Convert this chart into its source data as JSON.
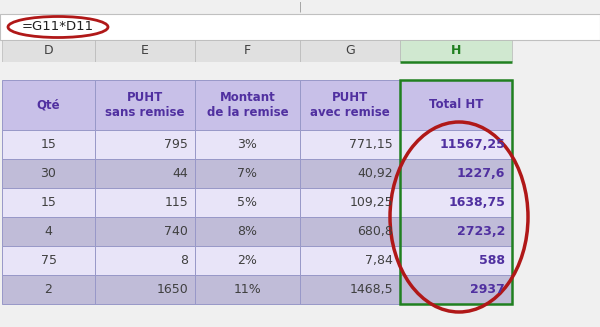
{
  "formula_bar_text": "=G11*D11",
  "col_letters": [
    "D",
    "E",
    "F",
    "G",
    "H"
  ],
  "header_row": [
    "Qté",
    "PUHT\nsans remise",
    "Montant\nde la remise",
    "PUHT\navec remise",
    "Total HT"
  ],
  "rows": [
    [
      "15",
      "795",
      "3%",
      "771,15",
      "11567,25"
    ],
    [
      "30",
      "44",
      "7%",
      "40,92",
      "1227,6"
    ],
    [
      "15",
      "115",
      "5%",
      "109,25",
      "1638,75"
    ],
    [
      "4",
      "740",
      "8%",
      "680,8",
      "2723,2"
    ],
    [
      "75",
      "8",
      "2%",
      "7,84",
      "588"
    ],
    [
      "2",
      "1650",
      "11%",
      "1468,5",
      "2937"
    ]
  ],
  "col_aligns": [
    "center",
    "right",
    "center",
    "right",
    "right"
  ],
  "header_bg": "#c8c0e8",
  "data_bg_white": "#e8e4f8",
  "data_bg_gray": "#c0bcd8",
  "h_col_bg_white": "#e8e4f8",
  "h_col_bg_gray": "#c0bcd8",
  "text_color_purple": "#5030a0",
  "text_color_dark": "#404040",
  "col_header_bg": "#e0e0e0",
  "col_header_selected_bg": "#d0e8d0",
  "formula_bar_bg": "#ffffff",
  "formula_bar_border": "#c0c0c0",
  "grid_color": "#9898c8",
  "h_border_color": "#208020",
  "oval_color": "#b01818",
  "fig_bg": "#f0f0f0",
  "top_bar_bg": "#f0f0f0"
}
